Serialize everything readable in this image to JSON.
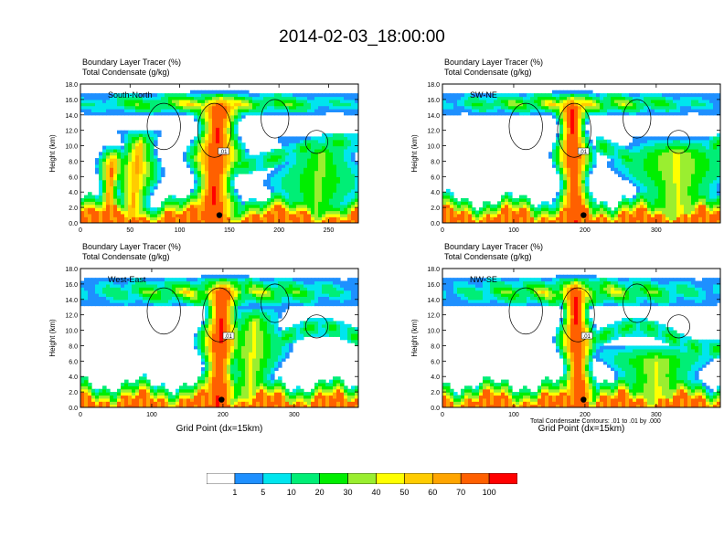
{
  "title": "2014-02-03_18:00:00",
  "panels": [
    {
      "id": "sn",
      "subtitle": "South-North",
      "xticks": [
        0,
        50,
        100,
        150,
        200,
        250
      ],
      "xmax": 280,
      "marker_x": 140,
      "top_label": "Boundary Layer Tracer   (%)",
      "top_label2": "Total Condensate   (g/kg)",
      "xlabel": ""
    },
    {
      "id": "swne",
      "subtitle": "SW-NE",
      "xticks": [
        0,
        100,
        200,
        300
      ],
      "xmax": 390,
      "marker_x": 198,
      "top_label": "Boundary Layer Tracer   (%)",
      "top_label2": "Total Condensate   (g/kg)",
      "xlabel": ""
    },
    {
      "id": "we",
      "subtitle": "West-East",
      "xticks": [
        0,
        100,
        200,
        300
      ],
      "xmax": 390,
      "marker_x": 198,
      "top_label": "Boundary Layer Tracer   (%)",
      "top_label2": "Total Condensate   (g/kg)",
      "xlabel": "Grid Point (dx=15km)"
    },
    {
      "id": "nwse",
      "subtitle": "NW-SE",
      "xticks": [
        0,
        100,
        200,
        300
      ],
      "xmax": 390,
      "marker_x": 198,
      "top_label": "Boundary Layer Tracer   (%)",
      "top_label2": "Total Condensate   (g/kg)",
      "xlabel": "Grid Point (dx=15km)"
    }
  ],
  "ylabel": "Height (km)",
  "yticks": [
    "0.0",
    "2.0",
    "4.0",
    "6.0",
    "8.0",
    "10.0",
    "12.0",
    "14.0",
    "16.0",
    "18.0"
  ],
  "contour_note": "Total Condensate Contours: .01 to .01 by .000",
  "contour_label": ".01",
  "colorbar": {
    "labels": [
      "1",
      "5",
      "10",
      "20",
      "30",
      "40",
      "50",
      "60",
      "70",
      "100"
    ],
    "colors": [
      "#ffffff",
      "#1e90ff",
      "#00e5ee",
      "#00ee76",
      "#00ee00",
      "#9aee30",
      "#ffff00",
      "#ffcc00",
      "#ffa500",
      "#ff6000",
      "#ff0000"
    ]
  },
  "chart_data": [
    {
      "type": "heatmap",
      "subtitle": "South-North",
      "top_label": "Boundary Layer Tracer   (%)",
      "top_label2": "Total Condensate   (g/kg)",
      "xlim": [
        0,
        280
      ],
      "ylim": [
        0,
        18
      ],
      "ylabel": "Height (km)",
      "xlabel": "",
      "xticks": [
        0,
        50,
        100,
        150,
        200,
        250
      ],
      "yticks": [
        0,
        2,
        4,
        6,
        8,
        10,
        12,
        14,
        16,
        18
      ],
      "tracer_plumes": [
        {
          "x_center": 135,
          "x_halfwidth": 12,
          "top_km": 17,
          "peak": 100
        },
        {
          "x_center": 30,
          "x_halfwidth": 6,
          "top_km": 10,
          "peak": 70
        },
        {
          "x_center": 55,
          "x_halfwidth": 10,
          "top_km": 12,
          "peak": 60
        },
        {
          "x_center": 240,
          "x_halfwidth": 20,
          "top_km": 11,
          "peak": 30
        }
      ],
      "anvil_layer_km": [
        14,
        17
      ],
      "contour_levels": [
        0.01
      ],
      "marker_point": [
        140,
        1
      ]
    },
    {
      "type": "heatmap",
      "subtitle": "SW-NE",
      "top_label": "Boundary Layer Tracer   (%)",
      "top_label2": "Total Condensate   (g/kg)",
      "xlim": [
        0,
        390
      ],
      "ylim": [
        0,
        18
      ],
      "ylabel": "Height (km)",
      "xlabel": "",
      "xticks": [
        0,
        100,
        200,
        300
      ],
      "yticks": [
        0,
        2,
        4,
        6,
        8,
        10,
        12,
        14,
        16,
        18
      ],
      "tracer_plumes": [
        {
          "x_center": 185,
          "x_halfwidth": 12,
          "top_km": 17,
          "peak": 100
        },
        {
          "x_center": 330,
          "x_halfwidth": 35,
          "top_km": 11,
          "peak": 40
        }
      ],
      "anvil_layer_km": [
        14,
        17
      ],
      "contour_levels": [
        0.01
      ],
      "marker_point": [
        198,
        1
      ]
    },
    {
      "type": "heatmap",
      "subtitle": "West-East",
      "top_label": "Boundary Layer Tracer   (%)",
      "top_label2": "Total Condensate   (g/kg)",
      "xlim": [
        0,
        390
      ],
      "ylim": [
        0,
        18
      ],
      "ylabel": "Height (km)",
      "xlabel": "Grid Point (dx=15km)",
      "xticks": [
        0,
        100,
        200,
        300
      ],
      "yticks": [
        0,
        2,
        4,
        6,
        8,
        10,
        12,
        14,
        16,
        18
      ],
      "tracer_plumes": [
        {
          "x_center": 195,
          "x_halfwidth": 14,
          "top_km": 17,
          "peak": 100
        },
        {
          "x_center": 240,
          "x_halfwidth": 20,
          "top_km": 13,
          "peak": 40
        }
      ],
      "anvil_layer_km": [
        13,
        17
      ],
      "contour_levels": [
        0.01
      ],
      "marker_point": [
        198,
        1
      ]
    },
    {
      "type": "heatmap",
      "subtitle": "NW-SE",
      "top_label": "Boundary Layer Tracer   (%)",
      "top_label2": "Total Condensate   (g/kg)",
      "xlim": [
        0,
        390
      ],
      "ylim": [
        0,
        18
      ],
      "ylabel": "Height (km)",
      "xlabel": "Grid Point (dx=15km)",
      "xticks": [
        0,
        100,
        200,
        300
      ],
      "yticks": [
        0,
        2,
        4,
        6,
        8,
        10,
        12,
        14,
        16,
        18
      ],
      "tracer_plumes": [
        {
          "x_center": 190,
          "x_halfwidth": 12,
          "top_km": 17,
          "peak": 100
        },
        {
          "x_center": 300,
          "x_halfwidth": 35,
          "top_km": 8,
          "peak": 40
        }
      ],
      "anvil_layer_km": [
        13,
        17
      ],
      "contour_levels": [
        0.01
      ],
      "marker_point": [
        198,
        1
      ]
    }
  ]
}
